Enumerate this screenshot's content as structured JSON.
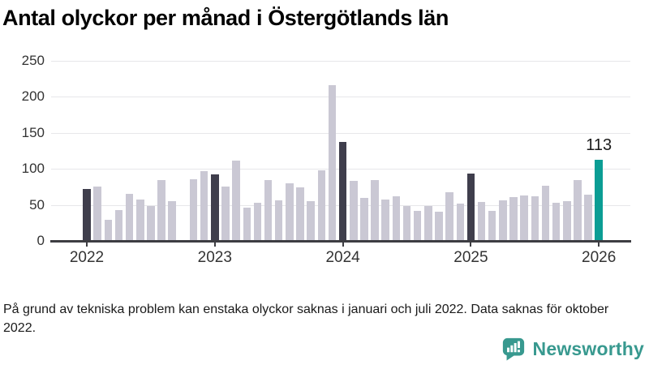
{
  "title": "Antal olyckor per månad i Östergötlands län",
  "footnote": "På grund av tekniska problem kan enstaka olyckor saknas i januari och juli 2022. Data saknas för oktober 2022.",
  "logo": {
    "text": "Newsworthy"
  },
  "colors": {
    "bar_default": "#cac8d4",
    "bar_january": "#3f3e4c",
    "bar_latest": "#0b9d94",
    "gridline": "#e7e7ea",
    "axis": "#3d3d42",
    "logo_teal": "#38998f",
    "text": "#1a1a1a"
  },
  "chart_data": {
    "type": "bar",
    "title": "Antal olyckor per månad i Östergötlands län",
    "xlabel": "",
    "ylabel": "",
    "ylim": [
      0,
      250
    ],
    "yticks": [
      0,
      50,
      100,
      150,
      200,
      250
    ],
    "grid": "horizontal",
    "legend": "none",
    "xticks": [
      {
        "label": "2022",
        "month_index": 0
      },
      {
        "label": "2023",
        "month_index": 12
      },
      {
        "label": "2024",
        "month_index": 24
      },
      {
        "label": "2025",
        "month_index": 36
      },
      {
        "label": "2026",
        "month_index": 48
      }
    ],
    "annotation": {
      "month": "jan 2026",
      "month_index": 48,
      "text": "113"
    },
    "note_missing": "okt 2022",
    "bars": [
      {
        "month": "jan 2022",
        "value": 72,
        "style": "january"
      },
      {
        "month": "feb 2022",
        "value": 76,
        "style": "default"
      },
      {
        "month": "mar 2022",
        "value": 29,
        "style": "default"
      },
      {
        "month": "apr 2022",
        "value": 43,
        "style": "default"
      },
      {
        "month": "maj 2022",
        "value": 65,
        "style": "default"
      },
      {
        "month": "jun 2022",
        "value": 58,
        "style": "default"
      },
      {
        "month": "jul 2022",
        "value": 49,
        "style": "default"
      },
      {
        "month": "aug 2022",
        "value": 84,
        "style": "default"
      },
      {
        "month": "sep 2022",
        "value": 55,
        "style": "default"
      },
      {
        "month": "okt 2022",
        "value": null,
        "style": "missing"
      },
      {
        "month": "nov 2022",
        "value": 86,
        "style": "default"
      },
      {
        "month": "dec 2022",
        "value": 97,
        "style": "default"
      },
      {
        "month": "jan 2023",
        "value": 92,
        "style": "january"
      },
      {
        "month": "feb 2023",
        "value": 75,
        "style": "default"
      },
      {
        "month": "mar 2023",
        "value": 112,
        "style": "default"
      },
      {
        "month": "apr 2023",
        "value": 46,
        "style": "default"
      },
      {
        "month": "maj 2023",
        "value": 53,
        "style": "default"
      },
      {
        "month": "jun 2023",
        "value": 85,
        "style": "default"
      },
      {
        "month": "jul 2023",
        "value": 56,
        "style": "default"
      },
      {
        "month": "aug 2023",
        "value": 80,
        "style": "default"
      },
      {
        "month": "sep 2023",
        "value": 74,
        "style": "default"
      },
      {
        "month": "okt 2023",
        "value": 55,
        "style": "default"
      },
      {
        "month": "nov 2023",
        "value": 98,
        "style": "default"
      },
      {
        "month": "dec 2023",
        "value": 216,
        "style": "default"
      },
      {
        "month": "jan 2024",
        "value": 137,
        "style": "january"
      },
      {
        "month": "feb 2024",
        "value": 83,
        "style": "default"
      },
      {
        "month": "mar 2024",
        "value": 60,
        "style": "default"
      },
      {
        "month": "apr 2024",
        "value": 84,
        "style": "default"
      },
      {
        "month": "maj 2024",
        "value": 58,
        "style": "default"
      },
      {
        "month": "jun 2024",
        "value": 62,
        "style": "default"
      },
      {
        "month": "jul 2024",
        "value": 49,
        "style": "default"
      },
      {
        "month": "aug 2024",
        "value": 42,
        "style": "default"
      },
      {
        "month": "sep 2024",
        "value": 48,
        "style": "default"
      },
      {
        "month": "okt 2024",
        "value": 41,
        "style": "default"
      },
      {
        "month": "nov 2024",
        "value": 68,
        "style": "default"
      },
      {
        "month": "dec 2024",
        "value": 52,
        "style": "default"
      },
      {
        "month": "jan 2025",
        "value": 93,
        "style": "january"
      },
      {
        "month": "feb 2025",
        "value": 54,
        "style": "default"
      },
      {
        "month": "mar 2025",
        "value": 42,
        "style": "default"
      },
      {
        "month": "apr 2025",
        "value": 56,
        "style": "default"
      },
      {
        "month": "maj 2025",
        "value": 61,
        "style": "default"
      },
      {
        "month": "jun 2025",
        "value": 63,
        "style": "default"
      },
      {
        "month": "jul 2025",
        "value": 62,
        "style": "default"
      },
      {
        "month": "aug 2025",
        "value": 77,
        "style": "default"
      },
      {
        "month": "sep 2025",
        "value": 53,
        "style": "default"
      },
      {
        "month": "okt 2025",
        "value": 55,
        "style": "default"
      },
      {
        "month": "nov 2025",
        "value": 85,
        "style": "default"
      },
      {
        "month": "dec 2025",
        "value": 64,
        "style": "default"
      },
      {
        "month": "jan 2026",
        "value": 113,
        "style": "latest"
      }
    ]
  }
}
